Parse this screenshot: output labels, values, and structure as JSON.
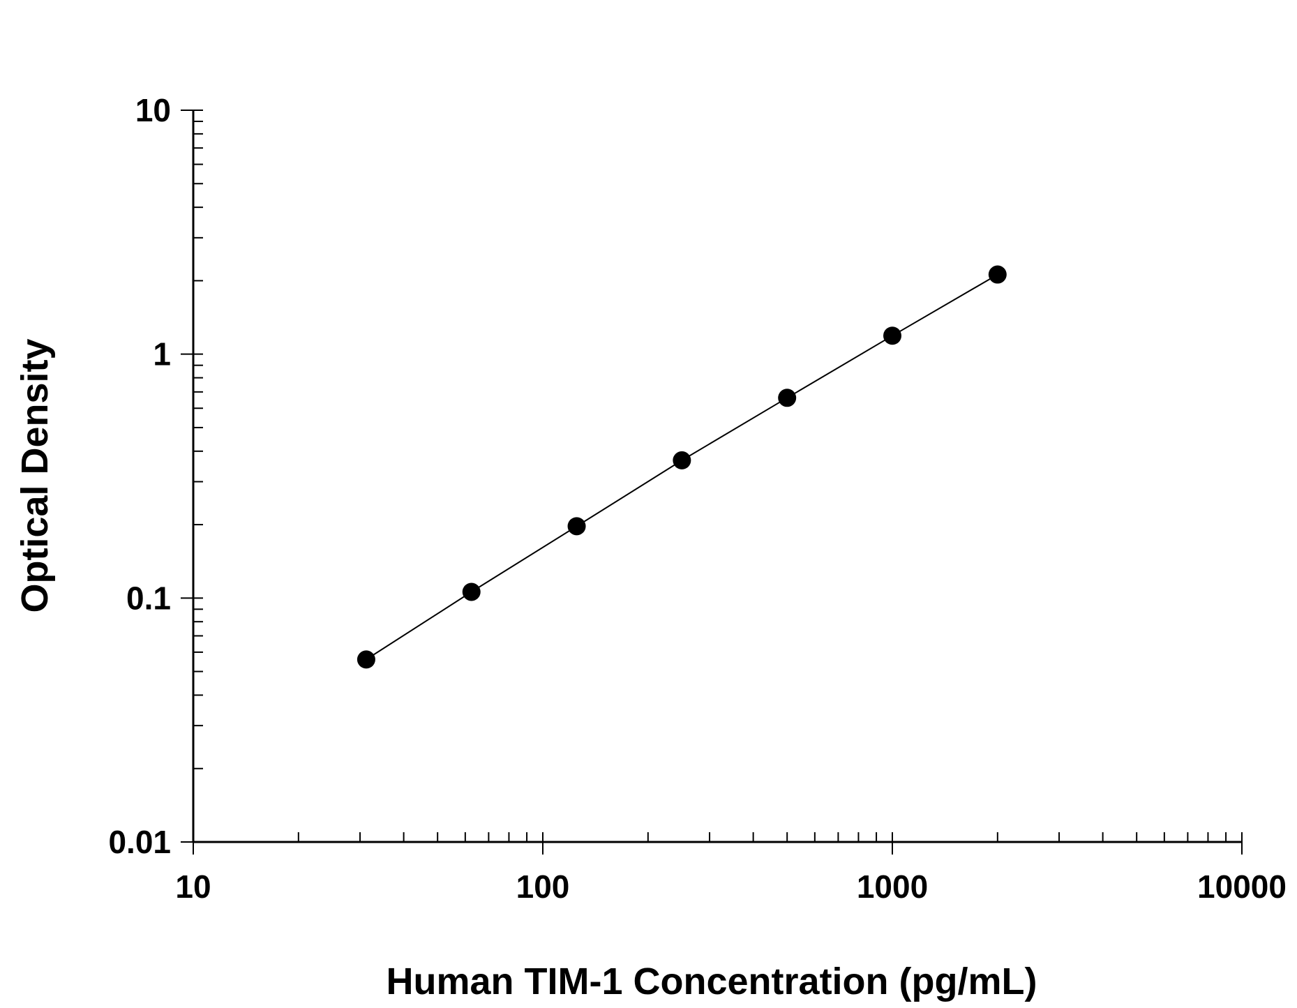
{
  "chart_data": {
    "type": "scatter",
    "title": "",
    "xlabel": "Human TIM-1 Concentration (pg/mL)",
    "ylabel": "Optical Density",
    "x_scale": "log",
    "y_scale": "log",
    "xlim": [
      10,
      10000
    ],
    "ylim": [
      0.01,
      10
    ],
    "x_ticks": [
      10,
      100,
      1000,
      10000
    ],
    "y_ticks": [
      0.01,
      0.1,
      1,
      10
    ],
    "x_tick_labels": [
      "10",
      "100",
      "1000",
      "10000"
    ],
    "y_tick_labels": [
      "0.01",
      "0.1",
      "1",
      "10"
    ],
    "grid": false,
    "legend": "none",
    "series": [
      {
        "x": [
          31.25,
          62.5,
          125,
          250,
          500,
          1000,
          2000
        ],
        "y": [
          0.056,
          0.106,
          0.197,
          0.367,
          0.662,
          1.19,
          2.12
        ],
        "marker": "circle",
        "color": "#000000",
        "fit_line": true
      }
    ]
  }
}
